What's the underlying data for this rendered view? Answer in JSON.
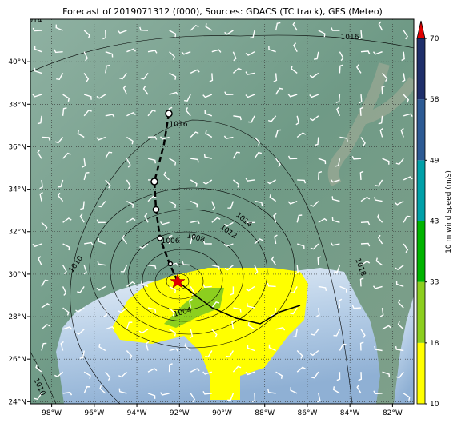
{
  "title": "Forecast of 2019071312 (f000), Sources: GDACS (TC track), GFS (Meteo)",
  "map": {
    "lonlim": [
      -99,
      -81
    ],
    "latlim": [
      23.9,
      42
    ],
    "xticks": [
      {
        "value": -98,
        "label": "98°W"
      },
      {
        "value": -96,
        "label": "96°W"
      },
      {
        "value": -94,
        "label": "94°W"
      },
      {
        "value": -92,
        "label": "92°W"
      },
      {
        "value": -90,
        "label": "90°W"
      },
      {
        "value": -88,
        "label": "88°W"
      },
      {
        "value": -86,
        "label": "86°W"
      },
      {
        "value": -84,
        "label": "84°W"
      },
      {
        "value": -82,
        "label": "82°W"
      }
    ],
    "yticks": [
      {
        "value": 24,
        "label": "24°N"
      },
      {
        "value": 26,
        "label": "26°N"
      },
      {
        "value": 28,
        "label": "28°N"
      },
      {
        "value": 30,
        "label": "30°N"
      },
      {
        "value": 32,
        "label": "32°N"
      },
      {
        "value": 34,
        "label": "34°N"
      },
      {
        "value": 36,
        "label": "36°N"
      },
      {
        "value": 38,
        "label": "38°N"
      },
      {
        "value": 40,
        "label": "40°N"
      }
    ],
    "grid": true,
    "contour_labels": [
      "1016",
      "1016",
      "1014",
      "1012",
      "1010",
      "1008",
      "1006",
      "1004",
      "1018",
      "1010",
      "014"
    ]
  },
  "colorbar": {
    "label": "10 m wind speed (m/s)",
    "ticks": [
      10,
      18,
      33,
      43,
      49,
      58,
      70
    ],
    "colors": [
      "#ffff00",
      "#8ccf1e",
      "#00b400",
      "#00a0a8",
      "#2c5a94",
      "#1e2f6a"
    ],
    "extend_color": "#e00000"
  }
}
